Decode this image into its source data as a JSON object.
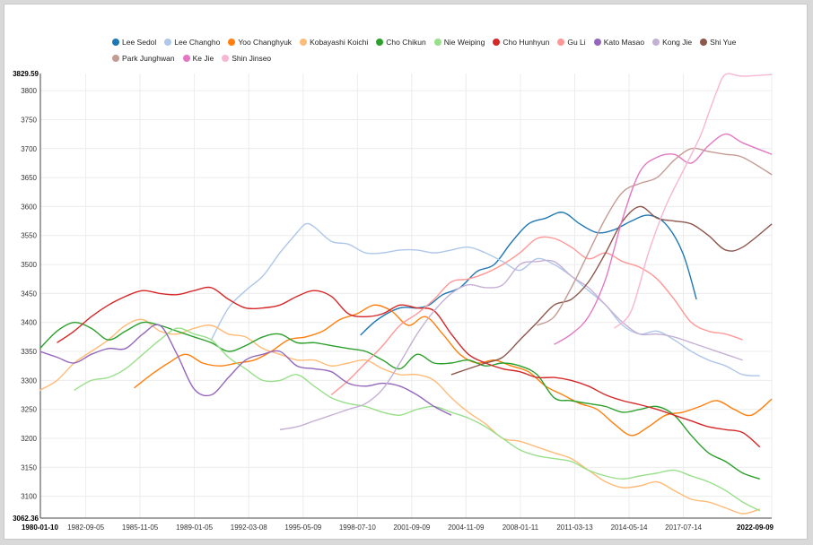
{
  "chart_data": {
    "type": "line",
    "title": "",
    "xlabel": "",
    "ylabel": "",
    "grid": true,
    "legend_position": "top",
    "xlim": [
      "1980-01-10",
      "2022-09-09"
    ],
    "ylim": [
      3062.36,
      3829.59
    ],
    "y_ticks": [
      3100,
      3150,
      3200,
      3250,
      3300,
      3350,
      3400,
      3450,
      3500,
      3550,
      3600,
      3650,
      3700,
      3750,
      3800
    ],
    "y_min_label": "3062.36",
    "y_max_label": "3829.59",
    "x_ticks": [
      "1980-01-10",
      "1982-09-05",
      "1985-11-05",
      "1989-01-05",
      "1992-03-08",
      "1995-05-09",
      "1998-07-10",
      "2001-09-09",
      "2004-11-09",
      "2008-01-11",
      "2011-03-13",
      "2014-05-14",
      "2017-07-14",
      "2022-09-09"
    ],
    "series": [
      {
        "name": "Lee Sedol",
        "color": "#1f77b4",
        "x": [
          1998.7,
          1999.7,
          2001.0,
          2002.0,
          2002.7,
          2003.5,
          2004.5,
          2005.5,
          2006.5,
          2007.5,
          2008.5,
          2009.5,
          2010.5,
          2011.5,
          2012.5,
          2013.5,
          2014.5,
          2015.5,
          2016.5,
          2017.5,
          2018.3
        ],
        "y": [
          3378,
          3405,
          3425,
          3425,
          3430,
          3448,
          3460,
          3488,
          3500,
          3538,
          3570,
          3580,
          3590,
          3570,
          3555,
          3560,
          3575,
          3585,
          3570,
          3520,
          3440
        ]
      },
      {
        "name": "Lee Changho",
        "color": "#aec7e8",
        "x": [
          1990.0,
          1991.0,
          1992.0,
          1993.0,
          1994.0,
          1995.0,
          1995.5,
          1996.0,
          1997.0,
          1998.0,
          1999.0,
          2000.0,
          2001.0,
          2002.0,
          2003.0,
          2004.0,
          2005.0,
          2006.0,
          2007.0,
          2008.0,
          2009.0,
          2010.0,
          2011.0,
          2012.0,
          2013.0,
          2014.0,
          2015.0,
          2016.0,
          2017.0,
          2018.0,
          2019.0,
          2020.0,
          2021.0,
          2022.0
        ],
        "y": [
          3370,
          3425,
          3455,
          3480,
          3520,
          3555,
          3570,
          3565,
          3540,
          3535,
          3520,
          3520,
          3525,
          3525,
          3520,
          3525,
          3530,
          3520,
          3505,
          3490,
          3510,
          3500,
          3480,
          3455,
          3430,
          3395,
          3380,
          3385,
          3370,
          3350,
          3335,
          3325,
          3310,
          3308
        ]
      },
      {
        "name": "Yoo Changhyuk",
        "color": "#ff7f0e",
        "x": [
          1985.5,
          1986.5,
          1987.5,
          1988.5,
          1989.5,
          1990.5,
          1991.5,
          1992.5,
          1993.5,
          1994.5,
          1995.5,
          1996.5,
          1997.5,
          1998.5,
          1999.5,
          2000.5,
          2001.5,
          2002.5,
          2003.5,
          2004.5,
          2005.5,
          2006.5,
          2007.5,
          2008.5,
          2009.5,
          2010.5,
          2011.5,
          2012.5,
          2013.5,
          2014.5,
          2015.5,
          2016.5,
          2017.5,
          2018.5,
          2019.5,
          2020.5,
          2021.5,
          2022.7
        ],
        "y": [
          3287,
          3310,
          3330,
          3345,
          3330,
          3325,
          3330,
          3335,
          3350,
          3370,
          3375,
          3385,
          3405,
          3415,
          3430,
          3420,
          3395,
          3410,
          3380,
          3345,
          3330,
          3335,
          3325,
          3315,
          3290,
          3275,
          3260,
          3250,
          3225,
          3205,
          3220,
          3240,
          3245,
          3255,
          3265,
          3250,
          3240,
          3268
        ]
      },
      {
        "name": "Kobayashi Koichi",
        "color": "#ffbb78",
        "x": [
          1980.0,
          1981.0,
          1982.0,
          1983.0,
          1984.0,
          1985.0,
          1986.0,
          1987.0,
          1988.0,
          1989.0,
          1990.0,
          1991.0,
          1992.0,
          1993.0,
          1994.0,
          1995.0,
          1996.0,
          1997.0,
          1998.0,
          1999.0,
          2000.0,
          2001.0,
          2002.0,
          2003.0,
          2004.0,
          2005.0,
          2006.0,
          2007.0,
          2008.0,
          2009.0,
          2010.0,
          2011.0,
          2012.0,
          2013.0,
          2014.0,
          2015.0,
          2016.0,
          2017.0,
          2018.0,
          2019.0,
          2020.0,
          2021.0,
          2022.0
        ],
        "y": [
          3283,
          3300,
          3330,
          3350,
          3370,
          3395,
          3405,
          3385,
          3380,
          3390,
          3395,
          3380,
          3375,
          3355,
          3345,
          3335,
          3335,
          3325,
          3330,
          3335,
          3320,
          3310,
          3310,
          3300,
          3270,
          3245,
          3225,
          3200,
          3195,
          3185,
          3175,
          3165,
          3145,
          3125,
          3115,
          3118,
          3125,
          3110,
          3095,
          3090,
          3080,
          3070,
          3078
        ]
      },
      {
        "name": "Cho Chikun",
        "color": "#2ca02c",
        "x": [
          1980.0,
          1981.0,
          1982.0,
          1983.0,
          1984.0,
          1985.0,
          1986.0,
          1987.0,
          1988.0,
          1989.0,
          1990.0,
          1991.0,
          1992.0,
          1993.0,
          1994.0,
          1995.0,
          1996.0,
          1997.0,
          1998.0,
          1999.0,
          2000.0,
          2001.0,
          2002.0,
          2003.0,
          2004.0,
          2005.0,
          2006.0,
          2007.0,
          2008.0,
          2009.0,
          2010.0,
          2011.0,
          2012.0,
          2013.0,
          2014.0,
          2015.0,
          2016.0,
          2017.0,
          2018.0,
          2019.0,
          2020.0,
          2021.0,
          2022.0
        ],
        "y": [
          3355,
          3385,
          3400,
          3390,
          3370,
          3385,
          3400,
          3395,
          3385,
          3375,
          3365,
          3350,
          3360,
          3375,
          3380,
          3365,
          3365,
          3360,
          3355,
          3350,
          3335,
          3320,
          3345,
          3330,
          3330,
          3335,
          3325,
          3330,
          3325,
          3310,
          3270,
          3265,
          3260,
          3255,
          3245,
          3250,
          3255,
          3240,
          3205,
          3175,
          3160,
          3140,
          3130
        ]
      },
      {
        "name": "Nie Weiping",
        "color": "#98df8a",
        "x": [
          1982.0,
          1983.0,
          1984.0,
          1985.0,
          1986.0,
          1987.0,
          1988.0,
          1989.0,
          1990.0,
          1991.0,
          1992.0,
          1993.0,
          1994.0,
          1995.0,
          1996.0,
          1997.0,
          1998.0,
          1999.0,
          2000.0,
          2001.0,
          2002.0,
          2003.0,
          2004.0,
          2005.0,
          2006.0,
          2007.0,
          2008.0,
          2009.0,
          2010.0,
          2011.0,
          2012.0,
          2013.0,
          2014.0,
          2015.0,
          2016.0,
          2017.0,
          2018.0,
          2019.0,
          2020.0,
          2021.0,
          2022.0
        ],
        "y": [
          3283,
          3300,
          3305,
          3320,
          3345,
          3370,
          3390,
          3380,
          3370,
          3340,
          3320,
          3300,
          3300,
          3310,
          3290,
          3270,
          3260,
          3255,
          3245,
          3240,
          3250,
          3255,
          3245,
          3235,
          3220,
          3200,
          3180,
          3170,
          3165,
          3160,
          3145,
          3135,
          3130,
          3135,
          3140,
          3145,
          3135,
          3125,
          3110,
          3090,
          3075
        ]
      },
      {
        "name": "Cho Hunhyun",
        "color": "#d62728",
        "x": [
          1981.0,
          1982.0,
          1983.0,
          1984.0,
          1985.0,
          1986.0,
          1987.0,
          1988.0,
          1989.0,
          1990.0,
          1991.0,
          1992.0,
          1993.0,
          1994.0,
          1995.0,
          1996.0,
          1997.0,
          1998.0,
          1999.0,
          2000.0,
          2001.0,
          2002.0,
          2003.0,
          2004.0,
          2005.0,
          2006.0,
          2007.0,
          2008.0,
          2009.0,
          2010.0,
          2011.0,
          2012.0,
          2013.0,
          2014.0,
          2015.0,
          2016.0,
          2017.0,
          2018.0,
          2019.0,
          2020.0,
          2021.0,
          2022.0
        ],
        "y": [
          3365,
          3385,
          3410,
          3430,
          3445,
          3455,
          3450,
          3448,
          3455,
          3460,
          3440,
          3425,
          3425,
          3430,
          3445,
          3455,
          3445,
          3415,
          3410,
          3415,
          3430,
          3425,
          3420,
          3380,
          3345,
          3330,
          3320,
          3315,
          3305,
          3305,
          3300,
          3290,
          3275,
          3265,
          3258,
          3250,
          3240,
          3230,
          3220,
          3215,
          3210,
          3185
        ]
      },
      {
        "name": "Gu Li",
        "color": "#ff9896",
        "x": [
          1997.0,
          1998.0,
          1999.0,
          2000.0,
          2001.0,
          2002.0,
          2003.0,
          2004.0,
          2005.0,
          2006.0,
          2007.0,
          2008.0,
          2009.0,
          2010.0,
          2011.0,
          2012.0,
          2013.0,
          2014.0,
          2015.0,
          2016.0,
          2017.0,
          2018.0,
          2019.0,
          2020.0,
          2021.0
        ],
        "y": [
          3275,
          3300,
          3330,
          3360,
          3395,
          3415,
          3440,
          3470,
          3475,
          3485,
          3500,
          3520,
          3545,
          3545,
          3530,
          3510,
          3520,
          3505,
          3495,
          3475,
          3440,
          3400,
          3385,
          3380,
          3370
        ]
      },
      {
        "name": "Kato Masao",
        "color": "#9467bd",
        "x": [
          1980.0,
          1981.0,
          1982.0,
          1983.0,
          1984.0,
          1985.0,
          1986.0,
          1987.0,
          1988.0,
          1989.0,
          1990.0,
          1991.0,
          1992.0,
          1993.0,
          1994.0,
          1995.0,
          1996.0,
          1997.0,
          1998.0,
          1999.0,
          2000.0,
          2001.0,
          2002.0,
          2003.0,
          2004.0
        ],
        "y": [
          3350,
          3340,
          3330,
          3345,
          3355,
          3355,
          3380,
          3395,
          3345,
          3285,
          3275,
          3305,
          3335,
          3345,
          3350,
          3325,
          3320,
          3315,
          3295,
          3290,
          3295,
          3290,
          3275,
          3255,
          3240
        ]
      },
      {
        "name": "Kong Jie",
        "color": "#c5b0d5",
        "x": [
          1994.0,
          1995.0,
          1996.0,
          1997.0,
          1998.0,
          1999.0,
          2000.0,
          2001.0,
          2002.0,
          2003.0,
          2004.0,
          2005.0,
          2006.0,
          2007.0,
          2008.0,
          2009.0,
          2010.0,
          2011.0,
          2012.0,
          2013.0,
          2014.0,
          2015.0,
          2016.0,
          2017.0,
          2018.0,
          2019.0,
          2020.0,
          2021.0
        ],
        "y": [
          3215,
          3220,
          3230,
          3240,
          3250,
          3260,
          3285,
          3330,
          3380,
          3420,
          3450,
          3465,
          3460,
          3465,
          3500,
          3505,
          3505,
          3480,
          3460,
          3430,
          3400,
          3380,
          3380,
          3375,
          3365,
          3355,
          3345,
          3335
        ]
      },
      {
        "name": "Shi Yue",
        "color": "#8c564b",
        "x": [
          2004.0,
          2005.0,
          2006.0,
          2007.0,
          2008.0,
          2009.0,
          2010.0,
          2011.0,
          2012.0,
          2013.0,
          2014.0,
          2015.0,
          2016.0,
          2017.0,
          2018.0,
          2019.0,
          2020.0,
          2021.0,
          2022.7
        ],
        "y": [
          3310,
          3320,
          3330,
          3340,
          3370,
          3400,
          3430,
          3440,
          3470,
          3520,
          3575,
          3600,
          3580,
          3575,
          3570,
          3550,
          3525,
          3530,
          3570
        ]
      },
      {
        "name": "Park Junghwan",
        "color": "#c49c94",
        "x": [
          2009.0,
          2010.0,
          2011.0,
          2012.0,
          2013.0,
          2014.0,
          2015.0,
          2016.0,
          2017.0,
          2018.0,
          2019.0,
          2020.0,
          2021.0,
          2022.7
        ],
        "y": [
          3395,
          3410,
          3460,
          3520,
          3580,
          3625,
          3640,
          3650,
          3680,
          3700,
          3695,
          3690,
          3685,
          3655
        ]
      },
      {
        "name": "Ke Jie",
        "color": "#e377c2",
        "x": [
          2010.0,
          2011.0,
          2012.0,
          2013.0,
          2014.0,
          2015.0,
          2016.0,
          2017.0,
          2018.0,
          2019.0,
          2020.0,
          2021.0,
          2022.7
        ],
        "y": [
          3362,
          3380,
          3410,
          3475,
          3580,
          3660,
          3685,
          3690,
          3675,
          3705,
          3725,
          3710,
          3690
        ]
      },
      {
        "name": "Shin Jinseo",
        "color": "#f7b6d2",
        "x": [
          2013.5,
          2014.5,
          2015.5,
          2016.5,
          2017.5,
          2018.5,
          2019.0,
          2019.5,
          2020.0,
          2021.0,
          2022.7
        ],
        "y": [
          3390,
          3420,
          3520,
          3600,
          3660,
          3720,
          3760,
          3800,
          3828,
          3825,
          3828
        ]
      }
    ]
  }
}
